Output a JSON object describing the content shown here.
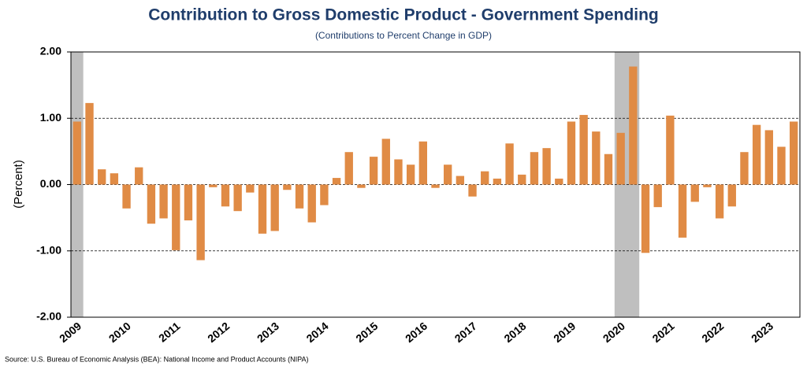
{
  "chart_data": {
    "type": "bar",
    "title": "Contribution to Gross Domestic Product - Government Spending",
    "subtitle": "(Contributions to Percent Change in GDP)",
    "y_label": "(Percent)",
    "source": "Source: U.S. Bureau of Economic Analysis (BEA): National Income and Product Accounts (NIPA)",
    "categories": [
      "2009",
      null,
      null,
      null,
      "2010",
      null,
      null,
      null,
      "2011",
      null,
      null,
      null,
      "2012",
      null,
      null,
      null,
      "2013",
      null,
      null,
      null,
      "2014",
      null,
      null,
      null,
      "2015",
      null,
      null,
      null,
      "2016",
      null,
      null,
      null,
      "2017",
      null,
      null,
      null,
      "2018",
      null,
      null,
      null,
      "2019",
      null,
      null,
      null,
      "2020",
      null,
      null,
      null,
      "2021",
      null,
      null,
      null,
      "2022",
      null,
      null,
      null,
      "2023",
      null,
      null
    ],
    "values": [
      0.95,
      1.23,
      0.23,
      0.17,
      -0.36,
      0.26,
      -0.59,
      -0.51,
      -0.99,
      -0.54,
      -1.14,
      -0.04,
      -0.33,
      -0.4,
      -0.12,
      -0.74,
      -0.7,
      -0.08,
      -0.36,
      -0.57,
      -0.31,
      0.1,
      0.49,
      -0.05,
      0.42,
      0.69,
      0.38,
      0.3,
      0.65,
      -0.05,
      0.3,
      0.13,
      -0.18,
      0.2,
      0.09,
      0.62,
      0.15,
      0.49,
      0.55,
      0.09,
      0.95,
      1.05,
      0.8,
      0.46,
      0.78,
      1.78,
      -1.03,
      -0.34,
      1.04,
      -0.8,
      -0.26,
      -0.04,
      -0.51,
      -0.33,
      0.49,
      0.9,
      0.82,
      0.57,
      0.95
    ],
    "color": "#e08b45",
    "shaded_periods": [
      [
        0,
        0
      ],
      [
        44,
        45
      ]
    ],
    "shade_color": "#bfbfbf",
    "ylim": [
      -2,
      2
    ],
    "yticks": [
      {
        "value": -2,
        "label": "-2.00"
      },
      {
        "value": -1,
        "label": "-1.00"
      },
      {
        "value": 0,
        "label": "0.00"
      },
      {
        "value": 1,
        "label": "1.00"
      },
      {
        "value": 2,
        "label": "2.00"
      }
    ],
    "grid": true
  }
}
